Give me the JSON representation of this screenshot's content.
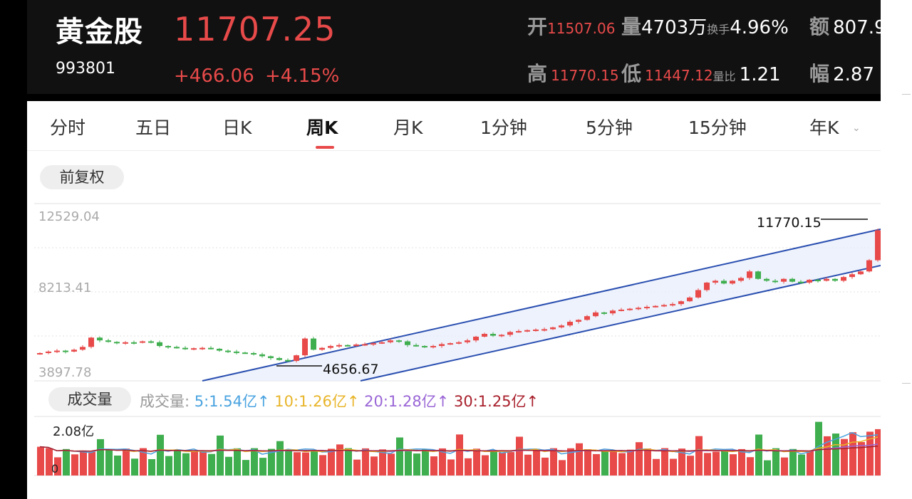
{
  "stock": {
    "name": "黄金股",
    "code": "993801",
    "price": "11707.25",
    "change": "+466.06",
    "change_pct": "+4.15%"
  },
  "stats": {
    "open_label": "开",
    "open_value": "11507.06",
    "volume_label": "量",
    "volume_value": "4703万",
    "turnover_label": "换手",
    "turnover_value": "4.96%",
    "amount_label": "额",
    "amount_value": "807.9",
    "high_label": "高",
    "high_value": "11770.15",
    "low_label": "低",
    "low_value": "11447.12",
    "ratio_label": "量比",
    "ratio_value": "1.21",
    "amp_label": "幅",
    "amp_value": "2.87"
  },
  "tabs": [
    "分时",
    "五日",
    "日K",
    "周K",
    "月K",
    "1分钟",
    "5分钟",
    "15分钟",
    "年K"
  ],
  "active_tab": "周K",
  "adjust_button": "前复权",
  "chart": {
    "y_top_label": "12529.04",
    "y_mid_label": "8213.41",
    "y_bottom_label": "3897.78",
    "high_marker": "11770.15",
    "low_marker": "4656.67"
  },
  "volume": {
    "button": "成交量",
    "legend_title": "成交量:",
    "ma5": "5:1.54亿",
    "ma10": "10:1.26亿",
    "ma20": "20:1.28亿",
    "ma30": "30:1.25亿",
    "arrow": "↑",
    "y_top_label": "2.08亿",
    "y_bottom_label": "0"
  },
  "colors": {
    "up": "#e84a4a",
    "down": "#3fae4f",
    "ma5": "#4aa3e0",
    "ma10": "#e8b52a",
    "ma20": "#9a66d6",
    "ma30": "#a8202c",
    "channel": "#2a4fb0"
  },
  "chart_data": {
    "type": "candlestick",
    "period": "weekly",
    "ylim": [
      3897.78,
      12529.04
    ],
    "closes": [
      5120,
      5200,
      5250,
      5200,
      5300,
      5450,
      5950,
      5800,
      5720,
      5650,
      5700,
      5680,
      5750,
      5700,
      5500,
      5450,
      5400,
      5350,
      5380,
      5400,
      5350,
      5250,
      5200,
      5150,
      5120,
      5050,
      4950,
      4850,
      4750,
      4700,
      5000,
      5900,
      5300,
      5400,
      5500,
      5550,
      5520,
      5580,
      5600,
      5650,
      5700,
      5800,
      5750,
      5550,
      5500,
      5450,
      5500,
      5600,
      5650,
      5700,
      5800,
      6000,
      6150,
      6050,
      6100,
      6250,
      6300,
      6350,
      6380,
      6400,
      6500,
      6600,
      6800,
      6900,
      7100,
      7300,
      7250,
      7400,
      7450,
      7500,
      7550,
      7600,
      7650,
      7700,
      7750,
      7900,
      8100,
      8500,
      8900,
      9000,
      8850,
      9000,
      9150,
      9500,
      9100,
      9000,
      8950,
      9100,
      8950,
      8900,
      9050,
      9000,
      9100,
      9000,
      9200,
      9350,
      9500,
      10100,
      11707.25
    ],
    "highlighted": {
      "high": 11770.15,
      "low": 4656.67
    },
    "volume_ylim": [
      0,
      2.08
    ],
    "volume_unit": "亿"
  }
}
